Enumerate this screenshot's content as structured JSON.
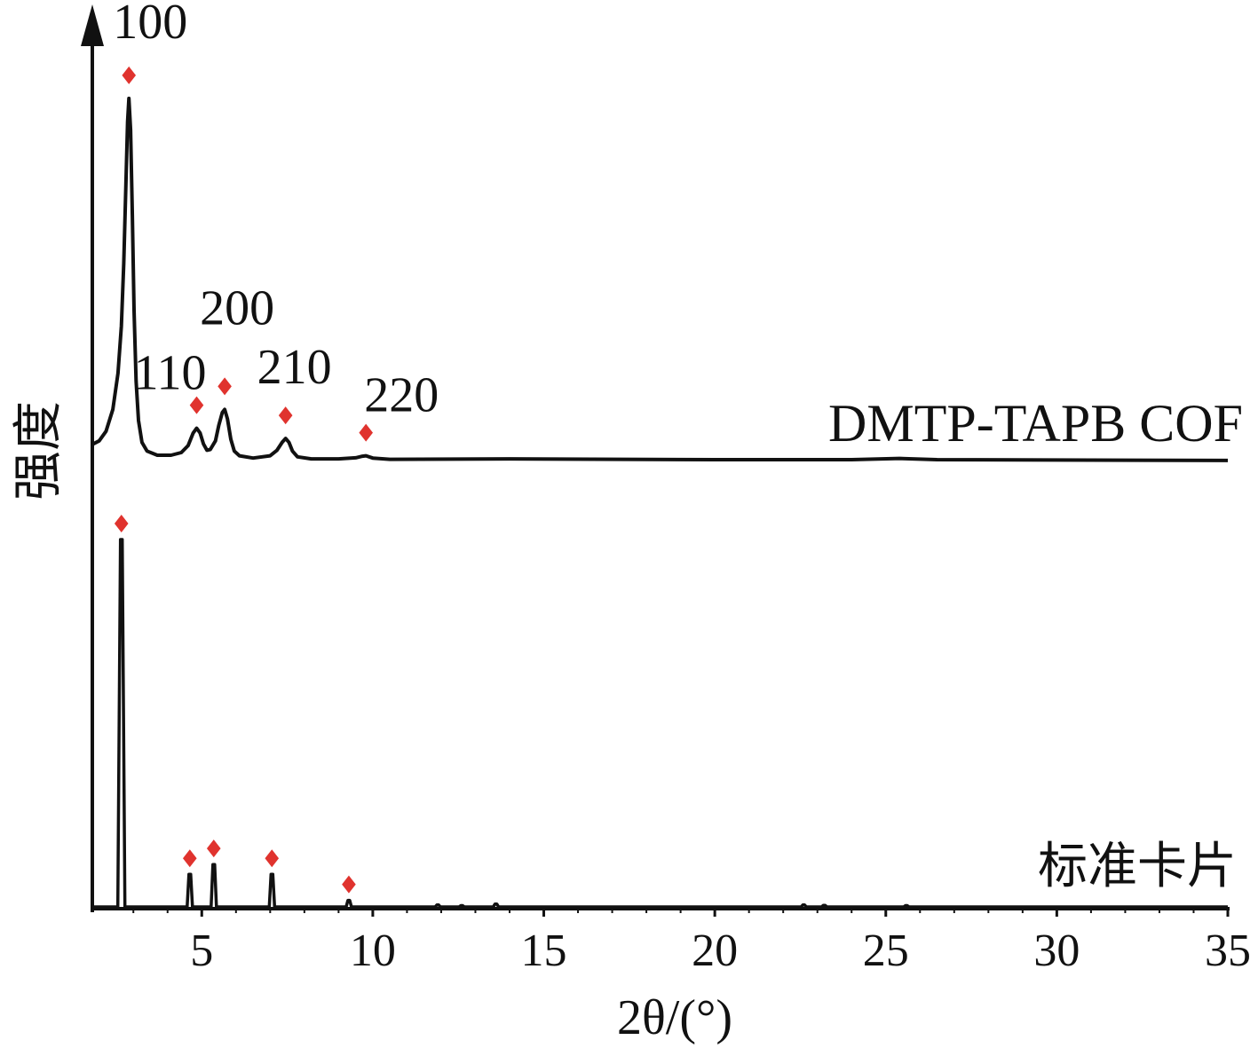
{
  "chart_data": {
    "type": "line",
    "xlabel": "2θ/(°)",
    "ylabel": "强度",
    "xlim": [
      1.8,
      35
    ],
    "x_ticks": [
      5,
      10,
      15,
      20,
      25,
      30,
      35
    ],
    "grid": false,
    "marker_color": "#e0332e",
    "line_color": "#111111",
    "series": [
      {
        "name": "DMTP-TAPB COF",
        "points": [
          [
            1.8,
            0.97
          ],
          [
            2.0,
            1.2
          ],
          [
            2.2,
            1.8
          ],
          [
            2.4,
            3.2
          ],
          [
            2.55,
            5.5
          ],
          [
            2.65,
            8.5
          ],
          [
            2.72,
            12.5
          ],
          [
            2.78,
            17.5
          ],
          [
            2.83,
            21.5
          ],
          [
            2.87,
            23.0
          ],
          [
            2.92,
            21.0
          ],
          [
            2.97,
            15.5
          ],
          [
            3.02,
            9.5
          ],
          [
            3.08,
            5.0
          ],
          [
            3.15,
            2.5
          ],
          [
            3.25,
            1.1
          ],
          [
            3.4,
            0.55
          ],
          [
            3.7,
            0.28
          ],
          [
            4.1,
            0.28
          ],
          [
            4.4,
            0.45
          ],
          [
            4.6,
            0.9
          ],
          [
            4.75,
            1.7
          ],
          [
            4.85,
            2.0
          ],
          [
            4.95,
            1.7
          ],
          [
            5.05,
            1.0
          ],
          [
            5.15,
            0.6
          ],
          [
            5.25,
            0.65
          ],
          [
            5.4,
            1.2
          ],
          [
            5.5,
            2.2
          ],
          [
            5.6,
            3.0
          ],
          [
            5.67,
            3.2
          ],
          [
            5.75,
            2.6
          ],
          [
            5.85,
            1.3
          ],
          [
            5.95,
            0.55
          ],
          [
            6.1,
            0.25
          ],
          [
            6.5,
            0.1
          ],
          [
            7.0,
            0.25
          ],
          [
            7.2,
            0.6
          ],
          [
            7.35,
            1.1
          ],
          [
            7.45,
            1.35
          ],
          [
            7.55,
            1.1
          ],
          [
            7.65,
            0.55
          ],
          [
            7.8,
            0.18
          ],
          [
            8.2,
            0.05
          ],
          [
            9.0,
            0.05
          ],
          [
            9.5,
            0.12
          ],
          [
            9.7,
            0.22
          ],
          [
            9.8,
            0.25
          ],
          [
            10.0,
            0.1
          ],
          [
            10.5,
            0.02
          ],
          [
            14,
            0.05
          ],
          [
            20,
            0.0
          ],
          [
            24,
            0.0
          ],
          [
            25.4,
            0.08
          ],
          [
            26.5,
            0.0
          ],
          [
            35,
            -0.05
          ]
        ],
        "peaks": [
          {
            "x": 2.87,
            "label": "100"
          },
          {
            "x": 4.85,
            "label": "110"
          },
          {
            "x": 5.67,
            "label": "200"
          },
          {
            "x": 7.45,
            "label": "210"
          },
          {
            "x": 9.8,
            "label": "220"
          }
        ]
      },
      {
        "name": "标准卡片",
        "sticks": [
          {
            "x": 2.65,
            "y": 22.5
          },
          {
            "x": 4.65,
            "y": 2.0
          },
          {
            "x": 5.35,
            "y": 2.6
          },
          {
            "x": 7.05,
            "y": 2.0
          },
          {
            "x": 9.3,
            "y": 0.4
          },
          {
            "x": 11.9,
            "y": 0.12
          },
          {
            "x": 12.6,
            "y": 0.08
          },
          {
            "x": 13.6,
            "y": 0.18
          },
          {
            "x": 22.6,
            "y": 0.12
          },
          {
            "x": 23.2,
            "y": 0.1
          },
          {
            "x": 25.6,
            "y": 0.08
          }
        ],
        "markers": [
          2.65,
          4.65,
          5.35,
          7.05,
          9.3
        ]
      }
    ]
  }
}
